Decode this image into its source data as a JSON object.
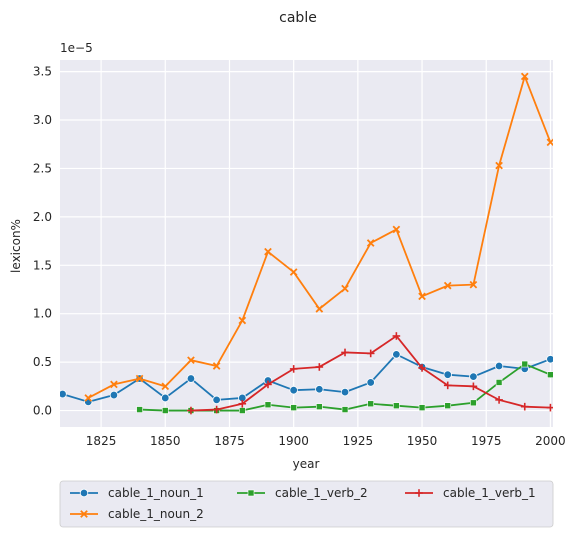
{
  "chart_data": {
    "type": "line",
    "title": "cable",
    "xlabel": "year",
    "ylabel": "lexicon%",
    "y_scale_note": "1e−5",
    "xlim": [
      1809,
      2001
    ],
    "ylim": [
      -0.17,
      3.62
    ],
    "xticks": [
      1825,
      1850,
      1875,
      1900,
      1925,
      1950,
      1975,
      2000
    ],
    "yticks": [
      0.0,
      0.5,
      1.0,
      1.5,
      2.0,
      2.5,
      3.0,
      3.5
    ],
    "ytick_labels": [
      "0.0",
      "0.5",
      "1.0",
      "1.5",
      "2.0",
      "2.5",
      "3.0",
      "3.5"
    ],
    "grid": true,
    "legend_position": "bottom",
    "series": [
      {
        "name": "cable_1_noun_1",
        "color": "#1f77b4",
        "marker": "circle",
        "x": [
          1810,
          1820,
          1830,
          1840,
          1850,
          1860,
          1870,
          1880,
          1890,
          1900,
          1910,
          1920,
          1930,
          1940,
          1950,
          1960,
          1970,
          1980,
          1990,
          2000
        ],
        "y": [
          0.17,
          0.09,
          0.16,
          0.33,
          0.13,
          0.33,
          0.11,
          0.13,
          0.31,
          0.21,
          0.22,
          0.19,
          0.29,
          0.58,
          0.45,
          0.37,
          0.35,
          0.46,
          0.43,
          0.53
        ]
      },
      {
        "name": "cable_1_noun_2",
        "color": "#ff7f0e",
        "marker": "x",
        "x": [
          1820,
          1830,
          1840,
          1850,
          1860,
          1870,
          1880,
          1890,
          1900,
          1910,
          1920,
          1930,
          1940,
          1950,
          1960,
          1970,
          1980,
          1990,
          2000
        ],
        "y": [
          0.13,
          0.27,
          0.33,
          0.25,
          0.52,
          0.46,
          0.93,
          1.64,
          1.43,
          1.05,
          1.26,
          1.73,
          1.87,
          1.18,
          1.29,
          1.3,
          2.53,
          3.45,
          2.77
        ]
      },
      {
        "name": "cable_1_verb_2",
        "color": "#2ca02c",
        "marker": "square",
        "x": [
          1840,
          1850,
          1860,
          1870,
          1880,
          1890,
          1900,
          1910,
          1920,
          1930,
          1940,
          1950,
          1960,
          1970,
          1980,
          1990,
          2000
        ],
        "y": [
          0.01,
          0.0,
          0.0,
          0.0,
          0.0,
          0.06,
          0.03,
          0.04,
          0.01,
          0.07,
          0.05,
          0.03,
          0.05,
          0.08,
          0.29,
          0.48,
          0.37
        ]
      },
      {
        "name": "cable_1_verb_1",
        "color": "#d62728",
        "marker": "plus",
        "x": [
          1860,
          1870,
          1880,
          1890,
          1900,
          1910,
          1920,
          1930,
          1940,
          1950,
          1960,
          1970,
          1980,
          1990,
          2000
        ],
        "y": [
          0.0,
          0.01,
          0.07,
          0.27,
          0.43,
          0.45,
          0.6,
          0.59,
          0.77,
          0.44,
          0.26,
          0.25,
          0.11,
          0.04,
          0.03
        ]
      }
    ],
    "legend_order": [
      "cable_1_noun_1",
      "cable_1_noun_2",
      "cable_1_verb_2",
      "cable_1_verb_1"
    ]
  }
}
